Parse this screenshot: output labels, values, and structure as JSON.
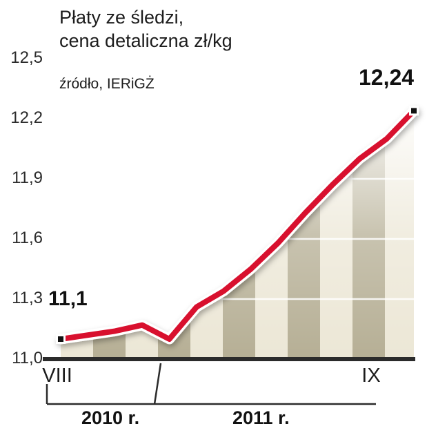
{
  "chart_data": {
    "type": "line",
    "title": "Płaty ze śledzi, cena detaliczna zł/kg",
    "title_lines": [
      "Płaty ze śledzi,",
      "cena detaliczna zł/kg"
    ],
    "source": "źródło, IERiGŻ",
    "ylabel": "cena detaliczna zł/kg",
    "ylim": [
      11.0,
      12.5
    ],
    "yticks": [
      11.0,
      11.3,
      11.6,
      11.9,
      12.2,
      12.5
    ],
    "ytick_labels": [
      "11,0",
      "11,3",
      "11,6",
      "11,9",
      "12,2",
      "12,5"
    ],
    "x_start_label": "VIII",
    "x_end_label": "IX",
    "period_labels": [
      "2010 r.",
      "2011 r."
    ],
    "series": [
      {
        "name": "cena detaliczna zł/kg",
        "values": [
          11.1,
          11.12,
          11.14,
          11.17,
          11.1,
          11.26,
          11.34,
          11.45,
          11.58,
          11.73,
          11.87,
          12.0,
          12.1,
          12.24
        ]
      }
    ],
    "endpoint_labels": [
      "11,1",
      "12,24"
    ],
    "grid": "horizontal-white-inside-area",
    "legend": "none",
    "colors": {
      "line": "#d8102e",
      "line_outline": "#ffffff",
      "stripe_light": "#ece7d6",
      "stripe_dark": "#b6af95",
      "axis": "#2b2b2b",
      "marker": "#111111",
      "text": "#1c1c1c"
    }
  }
}
